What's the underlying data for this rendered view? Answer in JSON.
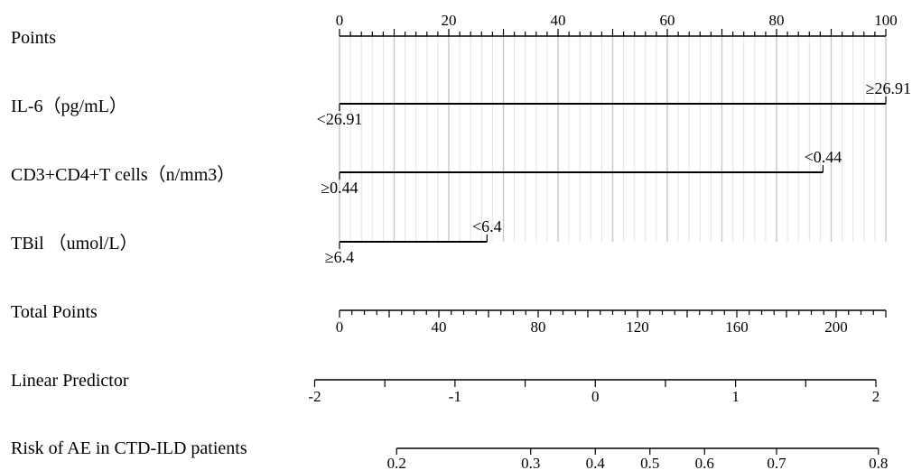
{
  "chart_data": {
    "type": "nomogram",
    "rows": [
      {
        "key": "points",
        "label": "Points",
        "kind": "axis",
        "min": 0,
        "max": 100,
        "major_ticks": [
          0,
          20,
          40,
          60,
          80,
          100
        ],
        "minor_step": 2
      },
      {
        "key": "il6",
        "label": "IL-6（pg/mL）",
        "kind": "variable",
        "levels": [
          {
            "label": "<26.91",
            "points": 0,
            "label_pos": "below"
          },
          {
            "label": "≥26.91",
            "points": 100,
            "label_pos": "above"
          }
        ]
      },
      {
        "key": "cd3cd4",
        "label": "CD3+CD4+T cells（n/mm3）",
        "kind": "variable",
        "levels": [
          {
            "label": "≥0.44",
            "points": 0,
            "label_pos": "below"
          },
          {
            "label": "<0.44",
            "points": 88.5,
            "label_pos": "above"
          }
        ]
      },
      {
        "key": "tbil",
        "label": "TBil （umol/L）",
        "kind": "variable",
        "levels": [
          {
            "label": "≥6.4",
            "points": 0,
            "label_pos": "below"
          },
          {
            "label": "<6.4",
            "points": 27,
            "label_pos": "above"
          }
        ]
      },
      {
        "key": "total",
        "label": "Total Points",
        "kind": "axis",
        "min": 0,
        "max": 220,
        "major_ticks": [
          0,
          40,
          80,
          120,
          160,
          200
        ],
        "minor_step": 5
      },
      {
        "key": "lp",
        "label": "Linear Predictor",
        "kind": "axis",
        "min": -2,
        "max": 2,
        "major_ticks": [
          -2,
          -1,
          0,
          1,
          2
        ],
        "minor_step": 0.5
      },
      {
        "key": "risk",
        "label": "Risk of AE in CTD-ILD patients",
        "kind": "axis",
        "min": 0.2,
        "max": 0.8,
        "major_ticks": [
          0.2,
          0.3,
          0.4,
          0.5,
          0.6,
          0.7,
          0.8
        ],
        "tick_labels": [
          "0.2",
          "0.3",
          "0.4",
          "0.5",
          "0.6",
          "0.7",
          "0.8"
        ],
        "minor_step": null
      }
    ],
    "risk_tick_total_points": [
      23,
      77,
      103,
      125,
      147,
      176,
      217
    ],
    "total_points_to_linear_predictor": {
      "points_at_minus2": -10,
      "points_at_2": 216
    },
    "grid": true
  }
}
